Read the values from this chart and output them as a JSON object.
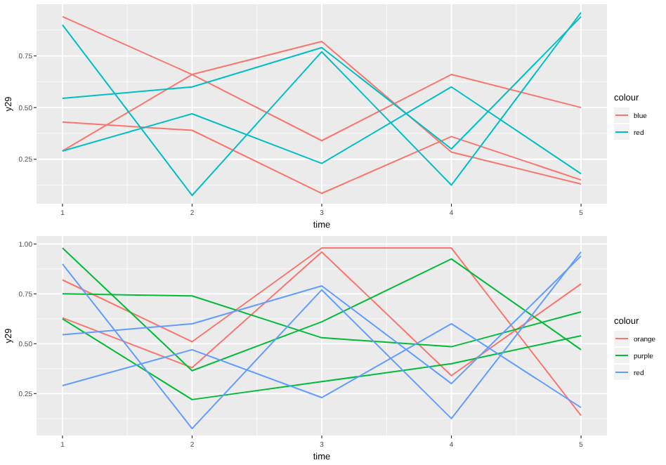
{
  "chart_data": [
    {
      "type": "line",
      "xlabel": "time",
      "ylabel": "y29",
      "legend_title": "colour",
      "legend": "right",
      "grid": true,
      "x": [
        1,
        2,
        3,
        4,
        5
      ],
      "xlim": [
        0.8,
        5.2
      ],
      "xticks": [
        1,
        2,
        3,
        4,
        5
      ],
      "ylim": [
        0.035,
        1.0
      ],
      "yticks": [
        {
          "value": 0.25,
          "label": "0.25"
        },
        {
          "value": 0.5,
          "label": "0.50"
        },
        {
          "value": 0.75,
          "label": "0.75"
        }
      ],
      "series": [
        {
          "name": "blue",
          "color": "#f8766d",
          "values": [
            0.94,
            0.66,
            0.34,
            0.66,
            0.5
          ]
        },
        {
          "color": "#f8766d",
          "values": [
            0.29,
            0.66,
            0.82,
            0.285,
            0.13
          ]
        },
        {
          "color": "#f8766d",
          "values": [
            0.43,
            0.39,
            0.085,
            0.36,
            0.15
          ]
        },
        {
          "name": "red",
          "color": "#00bfc4",
          "values": [
            0.9,
            0.075,
            0.77,
            0.125,
            0.96
          ]
        },
        {
          "color": "#00bfc4",
          "values": [
            0.545,
            0.6,
            0.79,
            0.3,
            0.94
          ]
        },
        {
          "color": "#00bfc4",
          "values": [
            0.29,
            0.47,
            0.23,
            0.6,
            0.18
          ]
        }
      ]
    },
    {
      "type": "line",
      "xlabel": "time",
      "ylabel": "y29",
      "legend_title": "colour",
      "legend": "right",
      "grid": true,
      "x": [
        1,
        2,
        3,
        4,
        5
      ],
      "xlim": [
        0.8,
        5.2
      ],
      "xticks": [
        1,
        2,
        3,
        4,
        5
      ],
      "ylim": [
        0.04,
        1.04
      ],
      "yticks": [
        {
          "value": 0.25,
          "label": "0.25"
        },
        {
          "value": 0.5,
          "label": "0.50"
        },
        {
          "value": 0.75,
          "label": "0.75"
        },
        {
          "value": 1,
          "label": "1.00"
        }
      ],
      "series": [
        {
          "name": "orange",
          "color": "#f8766d",
          "values": [
            0.82,
            0.51,
            0.98,
            0.98,
            0.14
          ]
        },
        {
          "color": "#f8766d",
          "values": [
            0.63,
            0.38,
            0.96,
            0.34,
            0.8
          ]
        },
        {
          "name": "purple",
          "color": "#00ba38",
          "values": [
            0.98,
            0.365,
            0.61,
            0.925,
            0.47
          ]
        },
        {
          "color": "#00ba38",
          "values": [
            0.75,
            0.74,
            0.53,
            0.485,
            0.66
          ]
        },
        {
          "color": "#00ba38",
          "values": [
            0.625,
            0.22,
            0.31,
            0.4,
            0.54
          ]
        },
        {
          "name": "red",
          "color": "#619cff",
          "values": [
            0.9,
            0.075,
            0.77,
            0.125,
            0.96
          ]
        },
        {
          "color": "#619cff",
          "values": [
            0.545,
            0.6,
            0.79,
            0.3,
            0.94
          ]
        },
        {
          "color": "#619cff",
          "values": [
            0.29,
            0.47,
            0.23,
            0.6,
            0.18
          ]
        }
      ]
    }
  ]
}
